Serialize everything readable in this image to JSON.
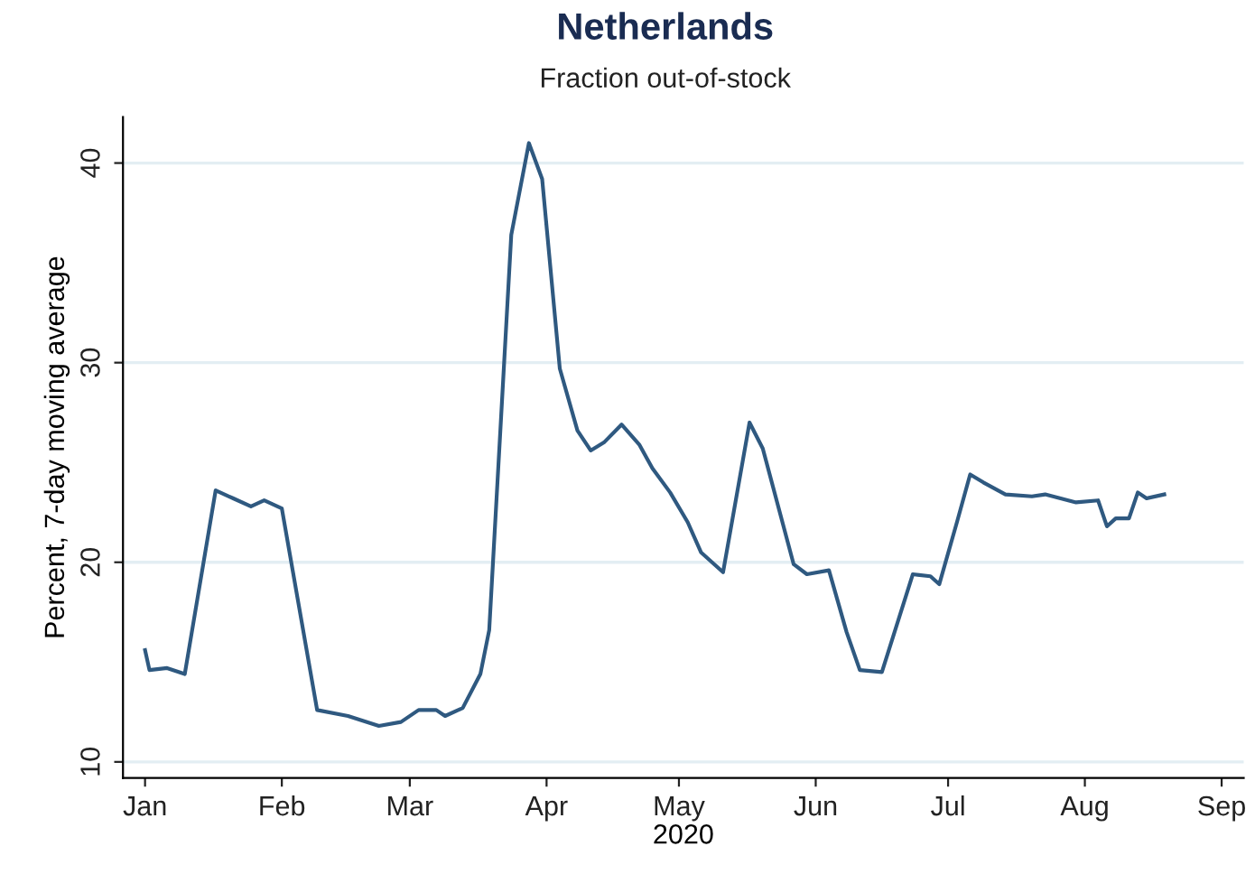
{
  "chart_data": {
    "type": "line",
    "title": "Netherlands",
    "subtitle": "Fraction out-of-stock",
    "xlabel": "2020",
    "ylabel": "Percent, 7-day moving average",
    "x": [
      "2020-01-01",
      "2020-01-02",
      "2020-01-06",
      "2020-01-10",
      "2020-01-17",
      "2020-01-21",
      "2020-01-25",
      "2020-01-28",
      "2020-02-01",
      "2020-02-09",
      "2020-02-16",
      "2020-02-23",
      "2020-02-28",
      "2020-03-03",
      "2020-03-07",
      "2020-03-09",
      "2020-03-13",
      "2020-03-17",
      "2020-03-19",
      "2020-03-24",
      "2020-03-28",
      "2020-03-31",
      "2020-04-04",
      "2020-04-08",
      "2020-04-11",
      "2020-04-14",
      "2020-04-18",
      "2020-04-22",
      "2020-04-25",
      "2020-04-29",
      "2020-05-03",
      "2020-05-06",
      "2020-05-11",
      "2020-05-17",
      "2020-05-20",
      "2020-05-27",
      "2020-05-30",
      "2020-06-04",
      "2020-06-08",
      "2020-06-11",
      "2020-06-16",
      "2020-06-23",
      "2020-06-27",
      "2020-06-29",
      "2020-07-03",
      "2020-07-06",
      "2020-07-09",
      "2020-07-14",
      "2020-07-20",
      "2020-07-23",
      "2020-07-30",
      "2020-08-04",
      "2020-08-06",
      "2020-08-08",
      "2020-08-11",
      "2020-08-13",
      "2020-08-15",
      "2020-08-19"
    ],
    "series": [
      {
        "color": "#2f5980",
        "values": [
          15.6,
          14.6,
          14.7,
          14.4,
          23.6,
          23.2,
          22.8,
          23.1,
          22.7,
          12.6,
          12.3,
          11.8,
          12.0,
          12.6,
          12.6,
          12.3,
          12.7,
          14.4,
          16.6,
          36.4,
          41.0,
          39.2,
          29.7,
          26.6,
          25.6,
          26.0,
          26.9,
          25.9,
          24.7,
          23.5,
          22.0,
          20.5,
          19.5,
          27.0,
          25.7,
          19.9,
          19.4,
          19.6,
          16.5,
          14.6,
          14.5,
          19.4,
          19.3,
          18.9,
          22.0,
          24.4,
          24.0,
          23.4,
          23.3,
          23.4,
          23.0,
          23.1,
          21.8,
          22.2,
          22.2,
          23.5,
          23.2,
          23.4
        ]
      }
    ],
    "xlim": [
      "2019-12-27",
      "2020-09-06"
    ],
    "xticks": [
      {
        "value": "2020-01-01",
        "label": "Jan"
      },
      {
        "value": "2020-02-01",
        "label": "Feb"
      },
      {
        "value": "2020-03-01",
        "label": "Mar"
      },
      {
        "value": "2020-04-01",
        "label": "Apr"
      },
      {
        "value": "2020-05-01",
        "label": "May"
      },
      {
        "value": "2020-06-01",
        "label": "Jun"
      },
      {
        "value": "2020-07-01",
        "label": "Jul"
      },
      {
        "value": "2020-08-01",
        "label": "Aug"
      },
      {
        "value": "2020-09-01",
        "label": "Sep"
      }
    ],
    "ylim": [
      9.2,
      42.3
    ],
    "yticks": [
      10,
      20,
      30,
      40
    ],
    "grid": "y",
    "marker": "none",
    "line_style": "solid"
  }
}
